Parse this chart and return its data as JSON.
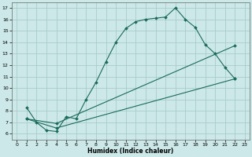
{
  "xlabel": "Humidex (Indice chaleur)",
  "bg_color": "#cce8e8",
  "grid_color": "#aacccc",
  "line_color": "#1a6b5a",
  "xlim": [
    -0.5,
    23.5
  ],
  "ylim": [
    5.5,
    17.5
  ],
  "xticks": [
    0,
    1,
    2,
    3,
    4,
    5,
    6,
    7,
    8,
    9,
    10,
    11,
    12,
    13,
    14,
    15,
    16,
    17,
    18,
    19,
    20,
    21,
    22,
    23
  ],
  "yticks": [
    6,
    7,
    8,
    9,
    10,
    11,
    12,
    13,
    14,
    15,
    16,
    17
  ],
  "line1_x": [
    1,
    2,
    3,
    4,
    5,
    6,
    7,
    8,
    9,
    10,
    11,
    12,
    13,
    14,
    15,
    16,
    17,
    18,
    19,
    20,
    21,
    22
  ],
  "line1_y": [
    8.3,
    7.0,
    6.3,
    6.2,
    7.5,
    7.3,
    9.0,
    10.5,
    12.3,
    14.0,
    15.2,
    15.8,
    16.0,
    16.1,
    16.2,
    17.0,
    16.0,
    15.3,
    13.8,
    13.0,
    11.8,
    10.8
  ],
  "line2_x": [
    1,
    4,
    22
  ],
  "line2_y": [
    7.3,
    6.9,
    13.7
  ],
  "line3_x": [
    1,
    4,
    22
  ],
  "line3_y": [
    7.3,
    6.5,
    10.8
  ]
}
